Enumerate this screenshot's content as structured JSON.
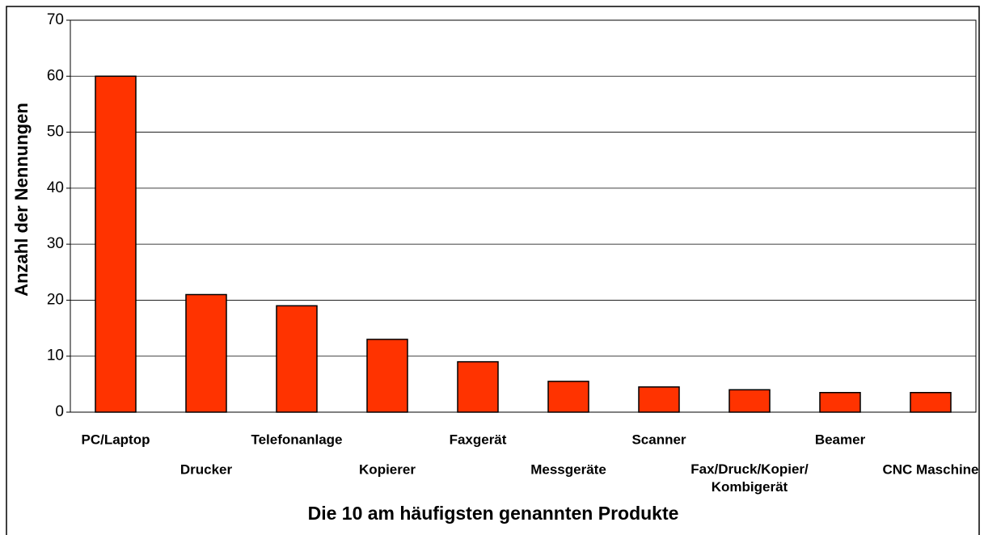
{
  "chart_data": {
    "type": "bar",
    "x_label": "Die 10 am häufigsten genannten Produkte",
    "y_label": "Anzahl der Nennungen",
    "categories": [
      "PC/Laptop",
      "Drucker",
      "Telefonanlage",
      "Kopierer",
      "Faxgerät",
      "Messgeräte",
      "Scanner",
      "Fax/Druck/Kopier/\nKombigerät",
      "Beamer",
      "CNC Maschine"
    ],
    "values": [
      60,
      21,
      19,
      13,
      9,
      5.5,
      4.5,
      4,
      3.5,
      3.5
    ],
    "color": "#ff3300",
    "ylim": [
      0,
      70
    ],
    "yticks": [
      0,
      10,
      20,
      30,
      40,
      50,
      60,
      70
    ],
    "grid": true
  }
}
